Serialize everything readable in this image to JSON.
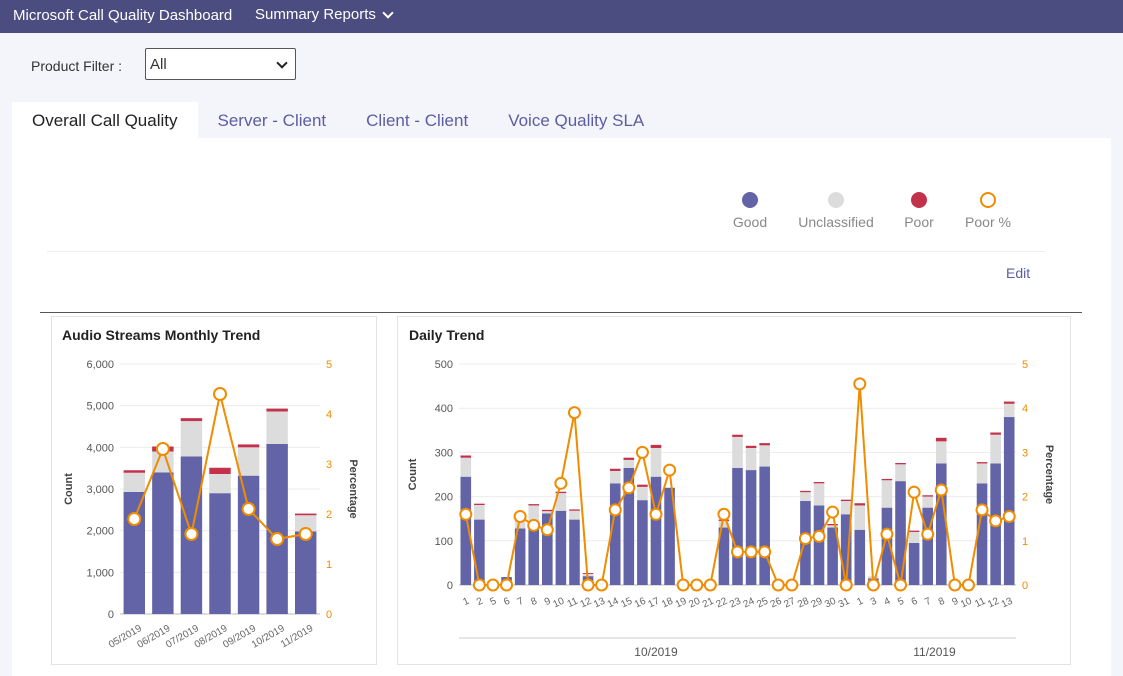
{
  "header": {
    "title": "Microsoft Call Quality Dashboard",
    "menu_label": "Summary Reports"
  },
  "filter": {
    "label": "Product Filter :",
    "value": "All"
  },
  "tabs": [
    {
      "label": "Overall Call Quality",
      "active": true
    },
    {
      "label": "Server - Client"
    },
    {
      "label": "Client - Client"
    },
    {
      "label": "Voice Quality SLA"
    }
  ],
  "legend": [
    {
      "label": "Good",
      "color": "#6264a7"
    },
    {
      "label": "Unclassified",
      "color": "#dcdcdc"
    },
    {
      "label": "Poor",
      "color": "#c4314b"
    },
    {
      "label": "Poor %",
      "color": "#f08c00"
    }
  ],
  "edit_label": "Edit",
  "colors": {
    "good": "#6264a7",
    "unclassified": "#dcdcdc",
    "poor": "#c4314b",
    "poor_pct": "#f08c00"
  },
  "chart_data": [
    {
      "type": "bar",
      "title": "Audio Streams Monthly Trend",
      "ylabel": "Count",
      "y2label": "Percentage",
      "ylim": [
        0,
        6000
      ],
      "y2lim": [
        0,
        5
      ],
      "yticks": [
        "0",
        "1,000",
        "2,000",
        "3,000",
        "4,000",
        "5,000",
        "6,000"
      ],
      "y2ticks": [
        "0",
        "1",
        "2",
        "3",
        "4",
        "5"
      ],
      "categories": [
        "05/2019",
        "06/2019",
        "07/2019",
        "08/2019",
        "09/2019",
        "10/2019",
        "11/2019"
      ],
      "series": [
        {
          "name": "Good",
          "values": [
            2930,
            3400,
            3780,
            2900,
            3320,
            4080,
            1980
          ]
        },
        {
          "name": "Unclassified",
          "values": [
            460,
            500,
            850,
            460,
            680,
            780,
            390
          ]
        },
        {
          "name": "Poor",
          "values": [
            60,
            120,
            70,
            150,
            70,
            70,
            40
          ]
        },
        {
          "name": "Poor %",
          "values": [
            1.9,
            3.3,
            1.6,
            4.4,
            2.1,
            1.5,
            1.6
          ]
        }
      ]
    },
    {
      "type": "bar",
      "title": "Daily Trend",
      "ylabel": "Count",
      "y2label": "Percentage",
      "ylim": [
        0,
        500
      ],
      "y2lim": [
        0,
        5
      ],
      "yticks": [
        "0",
        "100",
        "200",
        "300",
        "400",
        "500"
      ],
      "y2ticks": [
        "0",
        "1",
        "2",
        "3",
        "4",
        "5"
      ],
      "categories": [
        "1",
        "2",
        "5",
        "6",
        "7",
        "8",
        "9",
        "10",
        "11",
        "12",
        "13",
        "14",
        "15",
        "16",
        "17",
        "18",
        "19",
        "20",
        "21",
        "22",
        "23",
        "24",
        "25",
        "26",
        "27",
        "28",
        "29",
        "30",
        "31",
        "1",
        "3",
        "4",
        "5",
        "6",
        "7",
        "8",
        "9",
        "10",
        "11",
        "12",
        "13"
      ],
      "groups": [
        "10/2019",
        "11/2019"
      ],
      "series": [
        {
          "name": "Good",
          "values": [
            245,
            148,
            3,
            18,
            128,
            140,
            162,
            168,
            148,
            20,
            0,
            230,
            265,
            192,
            245,
            220,
            0,
            0,
            0,
            130,
            265,
            260,
            268,
            0,
            0,
            190,
            180,
            130,
            160,
            125,
            15,
            175,
            235,
            95,
            175,
            275,
            0,
            0,
            230,
            275,
            380
          ]
        },
        {
          "name": "Unclassified",
          "values": [
            43,
            33,
            0,
            0,
            30,
            40,
            5,
            40,
            20,
            5,
            0,
            28,
            18,
            30,
            65,
            0,
            0,
            0,
            0,
            15,
            70,
            50,
            48,
            0,
            0,
            20,
            50,
            5,
            30,
            55,
            5,
            62,
            38,
            25,
            25,
            50,
            0,
            0,
            45,
            65,
            30
          ]
        },
        {
          "name": "Poor",
          "values": [
            5,
            3,
            0,
            0,
            3,
            3,
            3,
            3,
            3,
            2,
            0,
            5,
            5,
            5,
            7,
            0,
            0,
            0,
            0,
            3,
            5,
            5,
            5,
            0,
            0,
            3,
            3,
            3,
            3,
            5,
            0,
            3,
            3,
            3,
            3,
            8,
            0,
            0,
            3,
            5,
            5
          ]
        },
        {
          "name": "Poor %",
          "values": [
            1.6,
            0,
            0,
            0,
            1.55,
            1.35,
            1.25,
            2.3,
            3.9,
            0,
            0,
            1.7,
            2.2,
            3.0,
            1.6,
            2.6,
            0,
            0,
            0,
            1.6,
            0.75,
            0.75,
            0.75,
            0,
            0,
            1.05,
            1.1,
            1.65,
            0,
            4.55,
            0,
            1.15,
            0,
            2.1,
            1.15,
            2.15,
            0,
            0,
            1.7,
            1.45,
            1.55
          ]
        }
      ]
    }
  ]
}
